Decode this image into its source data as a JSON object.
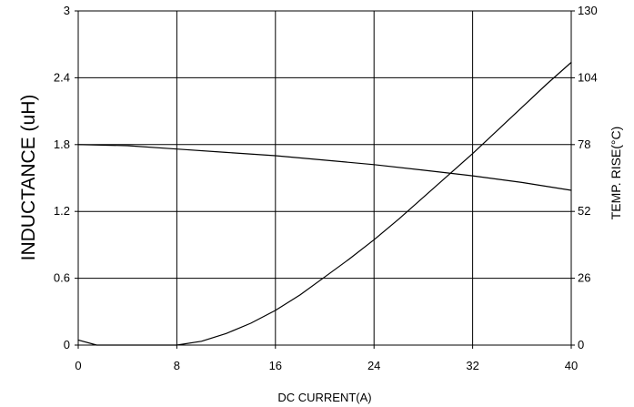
{
  "chart_data": {
    "type": "line",
    "title": "",
    "xlabel": "DC CURRENT(A)",
    "ylabel": "INDUCTANCE (uH)",
    "y2label": "TEMP. RISE(°C)",
    "xlim": [
      0,
      40
    ],
    "ylim": [
      0,
      3
    ],
    "y2lim": [
      0,
      130
    ],
    "xticks": [
      "0",
      "8",
      "16",
      "24",
      "32",
      "40"
    ],
    "yticks": [
      "0",
      "0.6",
      "1.2",
      "1.8",
      "2.4",
      "3"
    ],
    "y2ticks": [
      "0",
      "26",
      "52",
      "78",
      "104",
      "130"
    ],
    "grid": true,
    "legend": "none",
    "series": [
      {
        "axis": "left",
        "x": [
          0,
          4,
          8,
          12,
          16,
          20,
          24,
          28,
          32,
          36,
          40
        ],
        "values": [
          1.8,
          1.79,
          1.76,
          1.73,
          1.7,
          1.66,
          1.62,
          1.57,
          1.52,
          1.46,
          1.39
        ]
      },
      {
        "axis": "right",
        "x": [
          0,
          1.5,
          4,
          8,
          10,
          12,
          14,
          16,
          18,
          20,
          22,
          24,
          26,
          28,
          30,
          32,
          34,
          36,
          38,
          40
        ],
        "values": [
          2,
          0,
          0,
          0,
          1.5,
          4.5,
          8.5,
          13.5,
          19.5,
          26.5,
          33.5,
          41,
          49,
          57.5,
          66,
          74.5,
          83.5,
          92.5,
          101.5,
          110
        ]
      }
    ],
    "colors": {
      "line": "#000000",
      "grid": "#000000",
      "background": "#ffffff"
    }
  }
}
